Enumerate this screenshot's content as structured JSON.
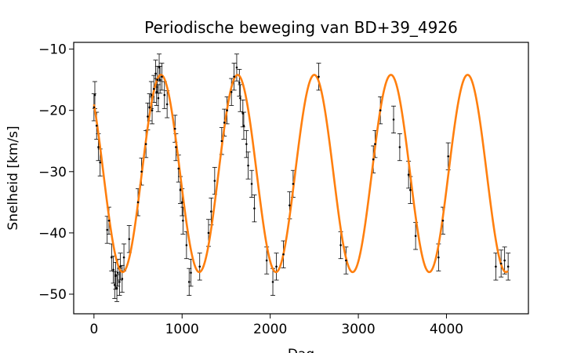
{
  "chart_data": {
    "type": "scatter",
    "title": "Periodische beweging van BD+39_4926",
    "xlabel": "Dag",
    "ylabel": "Snelheid [km/s]",
    "xlim": [
      -230,
      4930
    ],
    "ylim": [
      -53.2,
      -8.9
    ],
    "x_ticks": [
      0,
      1000,
      2000,
      3000,
      4000
    ],
    "y_ticks": [
      -10,
      -20,
      -30,
      -40,
      -50
    ],
    "grid": false,
    "legend": "none",
    "colors": {
      "points": "#000000",
      "fit": "#ff7f0e"
    },
    "fit": {
      "name": "",
      "model": "sine",
      "mean": -30.3,
      "amplitude": 16.1,
      "period": 870,
      "peak_day": 760,
      "x_range": [
        0,
        4700
      ]
    },
    "series": [
      {
        "name": "",
        "error": 2.2,
        "points": [
          [
            0,
            -19.5
          ],
          [
            10,
            -17.5
          ],
          [
            30,
            -22.5
          ],
          [
            50,
            -26
          ],
          [
            70,
            -28.5
          ],
          [
            150,
            -39.5
          ],
          [
            170,
            -38
          ],
          [
            200,
            -44
          ],
          [
            220,
            -46
          ],
          [
            235,
            -48.5
          ],
          [
            245,
            -47
          ],
          [
            260,
            -49
          ],
          [
            270,
            -46.5
          ],
          [
            290,
            -48
          ],
          [
            300,
            -45.5
          ],
          [
            320,
            -47.5
          ],
          [
            340,
            -44
          ],
          [
            400,
            -41
          ],
          [
            500,
            -35
          ],
          [
            540,
            -30
          ],
          [
            590,
            -25.5
          ],
          [
            610,
            -21
          ],
          [
            630,
            -19.5
          ],
          [
            650,
            -17.5
          ],
          [
            660,
            -20
          ],
          [
            680,
            -16.5
          ],
          [
            700,
            -14
          ],
          [
            710,
            -17
          ],
          [
            720,
            -15
          ],
          [
            730,
            -18
          ],
          [
            740,
            -13
          ],
          [
            750,
            -15
          ],
          [
            770,
            -14.5
          ],
          [
            800,
            -17.5
          ],
          [
            830,
            -19
          ],
          [
            920,
            -23
          ],
          [
            930,
            -26
          ],
          [
            960,
            -29.5
          ],
          [
            980,
            -33
          ],
          [
            1000,
            -35
          ],
          [
            1010,
            -38
          ],
          [
            1050,
            -42
          ],
          [
            1080,
            -48
          ],
          [
            1100,
            -46.5
          ],
          [
            1200,
            -45.5
          ],
          [
            1300,
            -40
          ],
          [
            1330,
            -36.5
          ],
          [
            1370,
            -31.5
          ],
          [
            1450,
            -25
          ],
          [
            1480,
            -22
          ],
          [
            1510,
            -20
          ],
          [
            1560,
            -17
          ],
          [
            1590,
            -14.5
          ],
          [
            1620,
            -13
          ],
          [
            1650,
            -15.5
          ],
          [
            1660,
            -18
          ],
          [
            1690,
            -20.5
          ],
          [
            1700,
            -22.5
          ],
          [
            1730,
            -25.5
          ],
          [
            1750,
            -29
          ],
          [
            1790,
            -32
          ],
          [
            1820,
            -36
          ],
          [
            1960,
            -44.5
          ],
          [
            2030,
            -48
          ],
          [
            2070,
            -45.5
          ],
          [
            2150,
            -43.5
          ],
          [
            2220,
            -35.5
          ],
          [
            2260,
            -32
          ],
          [
            2550,
            -14.5
          ],
          [
            2800,
            -42
          ],
          [
            2860,
            -44.5
          ],
          [
            3170,
            -28
          ],
          [
            3190,
            -25.5
          ],
          [
            3250,
            -20
          ],
          [
            3400,
            -21.5
          ],
          [
            3470,
            -26
          ],
          [
            3570,
            -30.5
          ],
          [
            3590,
            -33
          ],
          [
            3650,
            -40.5
          ],
          [
            3910,
            -44
          ],
          [
            3960,
            -38
          ],
          [
            4020,
            -27.5
          ],
          [
            4560,
            -45.5
          ],
          [
            4620,
            -45
          ],
          [
            4660,
            -44.5
          ],
          [
            4700,
            -45.5
          ]
        ]
      }
    ]
  }
}
